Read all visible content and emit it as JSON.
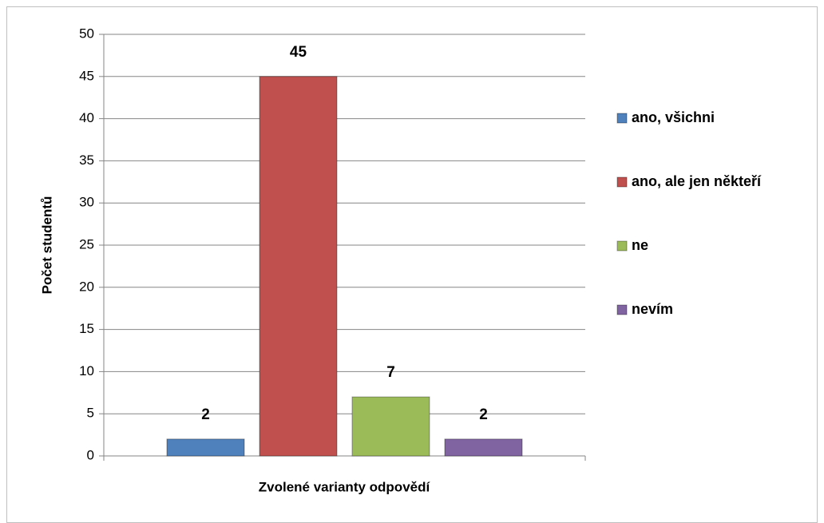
{
  "chart_data": {
    "type": "bar",
    "xlabel": "Zvolené varianty odpovědí",
    "ylabel": "Počet studentů",
    "series": [
      {
        "name": "ano, všichni",
        "color": "#4f81bd",
        "values": [
          2
        ]
      },
      {
        "name": "ano, ale jen někteří",
        "color": "#c0504d",
        "values": [
          45
        ]
      },
      {
        "name": "ne",
        "color": "#9bbb59",
        "values": [
          7
        ]
      },
      {
        "name": "nevím",
        "color": "#8064a2",
        "values": [
          2
        ]
      }
    ],
    "ylim": [
      0,
      50
    ],
    "yticks": [
      0,
      5,
      10,
      15,
      20,
      25,
      30,
      35,
      40,
      45,
      50
    ],
    "grid": true,
    "legend": "right"
  }
}
